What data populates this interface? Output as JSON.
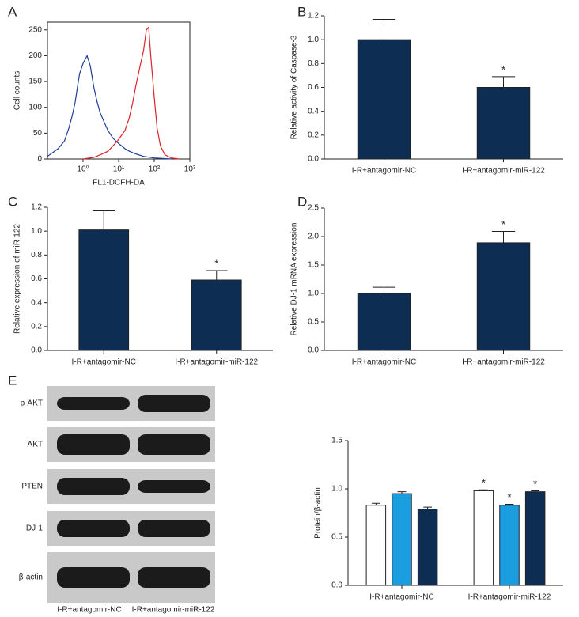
{
  "chart_data": [
    {
      "type": "line",
      "label": "A",
      "xlabel": "FL1-DCFH-DA",
      "ylabel": "Cell counts",
      "xlog": true,
      "xlim": [
        0.1,
        1000
      ],
      "xticks": [
        {
          "value": 1,
          "label": "10⁰"
        },
        {
          "value": 10,
          "label": "10¹"
        },
        {
          "value": 100,
          "label": "10²"
        },
        {
          "value": 1000,
          "label": "10³"
        }
      ],
      "ylim": [
        0,
        265
      ],
      "yticks": [
        0,
        50,
        100,
        150,
        200,
        250
      ],
      "series": [
        {
          "color": "#1f3d99",
          "x": [
            0.1,
            0.2,
            0.3,
            0.4,
            0.5,
            0.6,
            0.7,
            0.8,
            1.0,
            1.3,
            1.6,
            2,
            2.5,
            3,
            4,
            5,
            7,
            10,
            15,
            20,
            30,
            50,
            100,
            300
          ],
          "values": [
            5,
            20,
            35,
            60,
            85,
            110,
            140,
            165,
            185,
            200,
            180,
            140,
            110,
            90,
            70,
            55,
            40,
            30,
            20,
            15,
            10,
            5,
            2,
            0
          ]
        },
        {
          "color": "#e0202a",
          "x": [
            1,
            2,
            3,
            5,
            8,
            10,
            15,
            20,
            25,
            30,
            40,
            50,
            60,
            70,
            80,
            100,
            120,
            150,
            200,
            300,
            500
          ],
          "values": [
            0,
            3,
            8,
            15,
            30,
            38,
            55,
            80,
            110,
            140,
            180,
            210,
            250,
            255,
            200,
            120,
            60,
            25,
            8,
            2,
            0
          ]
        }
      ]
    },
    {
      "type": "bar",
      "label": "B",
      "ylabel": "Relative activity of Caspase-3",
      "categories": [
        "I-R+antagomir-NC",
        "I-R+antagomir-miR-122"
      ],
      "values": [
        1.0,
        0.6
      ],
      "errors": [
        0.17,
        0.09
      ],
      "annotations": [
        null,
        "*"
      ],
      "color": "#0d2d52",
      "ylim": [
        0,
        1.2
      ],
      "yticks": [
        {
          "value": 0,
          "label": "0.0"
        },
        0.2,
        0.4,
        0.6,
        0.8,
        {
          "value": 1,
          "label": "1.0"
        },
        1.2
      ]
    },
    {
      "type": "bar",
      "label": "C",
      "ylabel": "Relative expression of miR-122",
      "categories": [
        "I-R+antagomir-NC",
        "I-R+antagomir-miR-122"
      ],
      "values": [
        1.01,
        0.59
      ],
      "errors": [
        0.16,
        0.08
      ],
      "annotations": [
        null,
        "*"
      ],
      "color": "#0d2d52",
      "ylim": [
        0,
        1.2
      ],
      "yticks": [
        {
          "value": 0,
          "label": "0.0"
        },
        0.2,
        0.4,
        0.6,
        0.8,
        {
          "value": 1,
          "label": "1.0"
        },
        1.2
      ]
    },
    {
      "type": "bar",
      "label": "D",
      "ylabel": "Relative DJ-1 mRNA expression",
      "categories": [
        "I-R+antagomir-NC",
        "I-R+antagomir-miR-122"
      ],
      "values": [
        1.0,
        1.89
      ],
      "errors": [
        0.11,
        0.2
      ],
      "annotations": [
        null,
        "*"
      ],
      "color": "#0d2d52",
      "ylim": [
        0,
        2.5
      ],
      "yticks": [
        {
          "value": 0,
          "label": "0.0"
        },
        0.5,
        {
          "value": 1,
          "label": "1.0"
        },
        1.5,
        {
          "value": 2,
          "label": "2.0"
        },
        2.5
      ]
    },
    {
      "type": "bar",
      "ylabel": "Protein/β-actin",
      "categories": [
        "I-R+antagomir-NC",
        "I-R+antagomir-miR-122"
      ],
      "series": [
        {
          "color": "#ffffff",
          "values": [
            0.83,
            0.98
          ],
          "errors": [
            0.02,
            0.01
          ],
          "annotations": [
            null,
            "*"
          ]
        },
        {
          "color": "#1a9ee0",
          "values": [
            0.95,
            0.83
          ],
          "errors": [
            0.02,
            0.01
          ],
          "annotations": [
            null,
            "*"
          ]
        },
        {
          "color": "#0d2d52",
          "values": [
            0.79,
            0.97
          ],
          "errors": [
            0.02,
            0.01
          ],
          "annotations": [
            null,
            "*"
          ]
        }
      ],
      "ylim": [
        0,
        1.5
      ],
      "yticks": [
        {
          "value": 0,
          "label": "0.0"
        },
        0.5,
        {
          "value": 1,
          "label": "1.0"
        },
        1.5
      ]
    }
  ],
  "blot": {
    "label": "E",
    "rows": [
      "p-AKT",
      "AKT",
      "PTEN",
      "DJ-1",
      "β-actin"
    ],
    "columns": [
      "I-R+antagomir-NC",
      "I-R+antagomir-miR-122"
    ]
  }
}
